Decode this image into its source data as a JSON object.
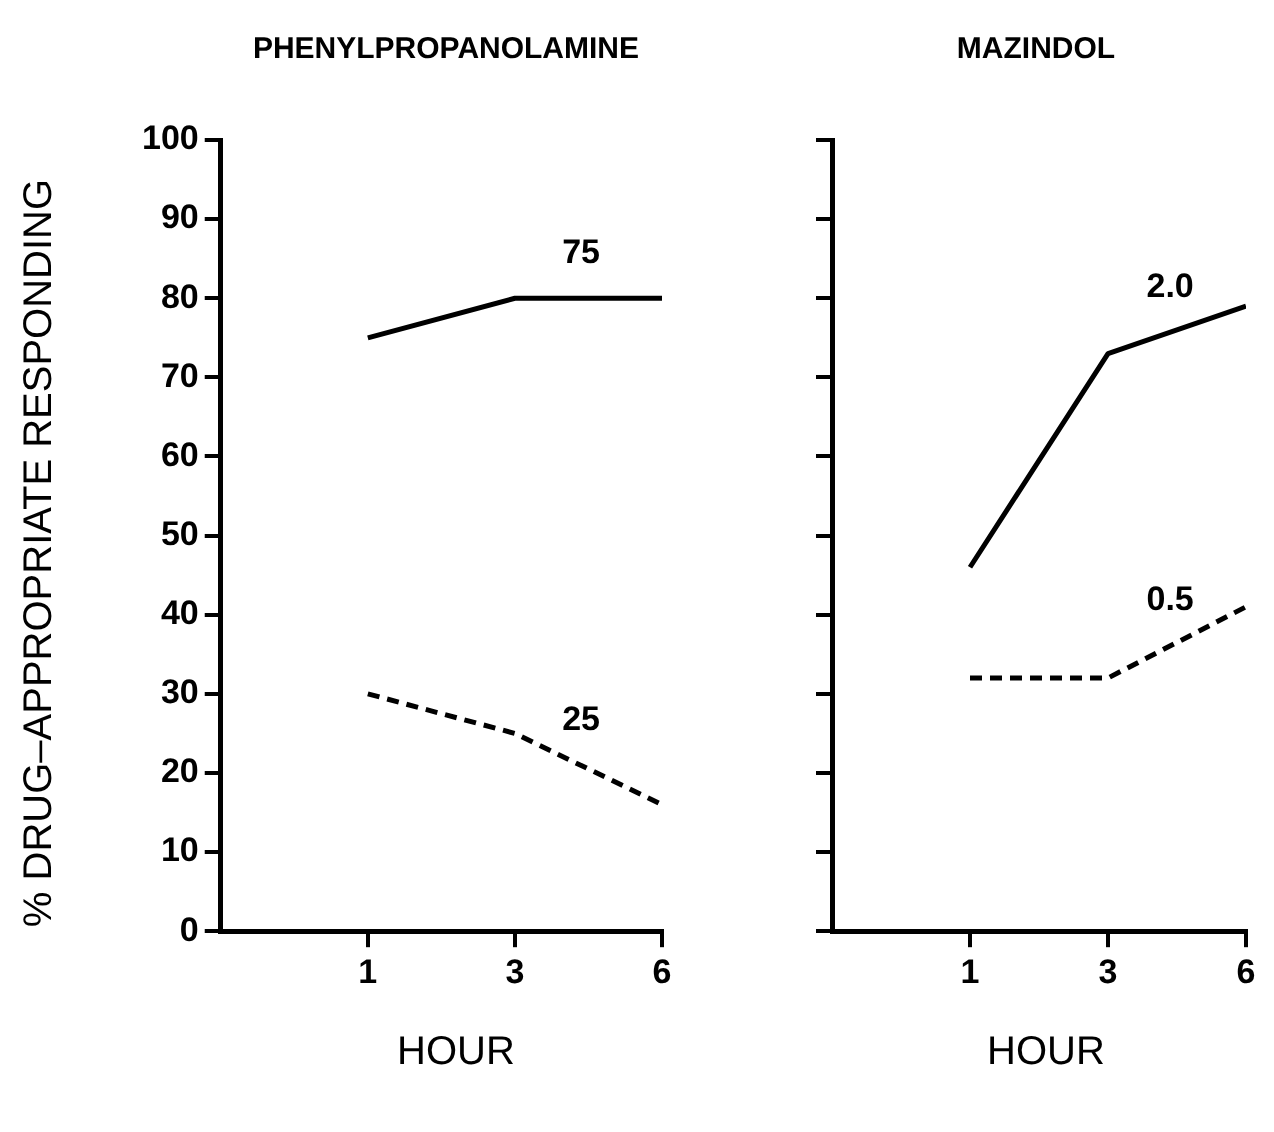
{
  "chart_data": [
    {
      "type": "line",
      "title": "PHENYLPROPANOLAMINE",
      "xlabel": "HOUR",
      "ylabel": "% DRUG–APPROPRIATE RESPONDING",
      "categories": [
        "1",
        "3",
        "6"
      ],
      "ylim": [
        0,
        100
      ],
      "yticks": [
        0,
        10,
        20,
        30,
        40,
        50,
        60,
        70,
        80,
        90,
        100
      ],
      "grid": false,
      "legend": false,
      "marker": "none",
      "series": [
        {
          "name": "75",
          "color": "#000000",
          "line_style": "solid",
          "values": [
            75,
            80,
            80
          ]
        },
        {
          "name": "25",
          "color": "#000000",
          "line_style": "dashed",
          "values": [
            30,
            25,
            16
          ]
        }
      ]
    },
    {
      "type": "line",
      "title": "MAZINDOL",
      "xlabel": "HOUR",
      "categories": [
        "1",
        "3",
        "6"
      ],
      "ylim": [
        0,
        100
      ],
      "yticks": [
        0,
        10,
        20,
        30,
        40,
        50,
        60,
        70,
        80,
        90,
        100
      ],
      "tick_labels": "x",
      "grid": false,
      "legend": false,
      "marker": "none",
      "series": [
        {
          "name": "2.0",
          "color": "#000000",
          "line_style": "solid",
          "values": [
            46,
            73,
            79
          ]
        },
        {
          "name": "0.5",
          "color": "#000000",
          "line_style": "dashed",
          "values": [
            32,
            32,
            41
          ]
        }
      ]
    }
  ]
}
